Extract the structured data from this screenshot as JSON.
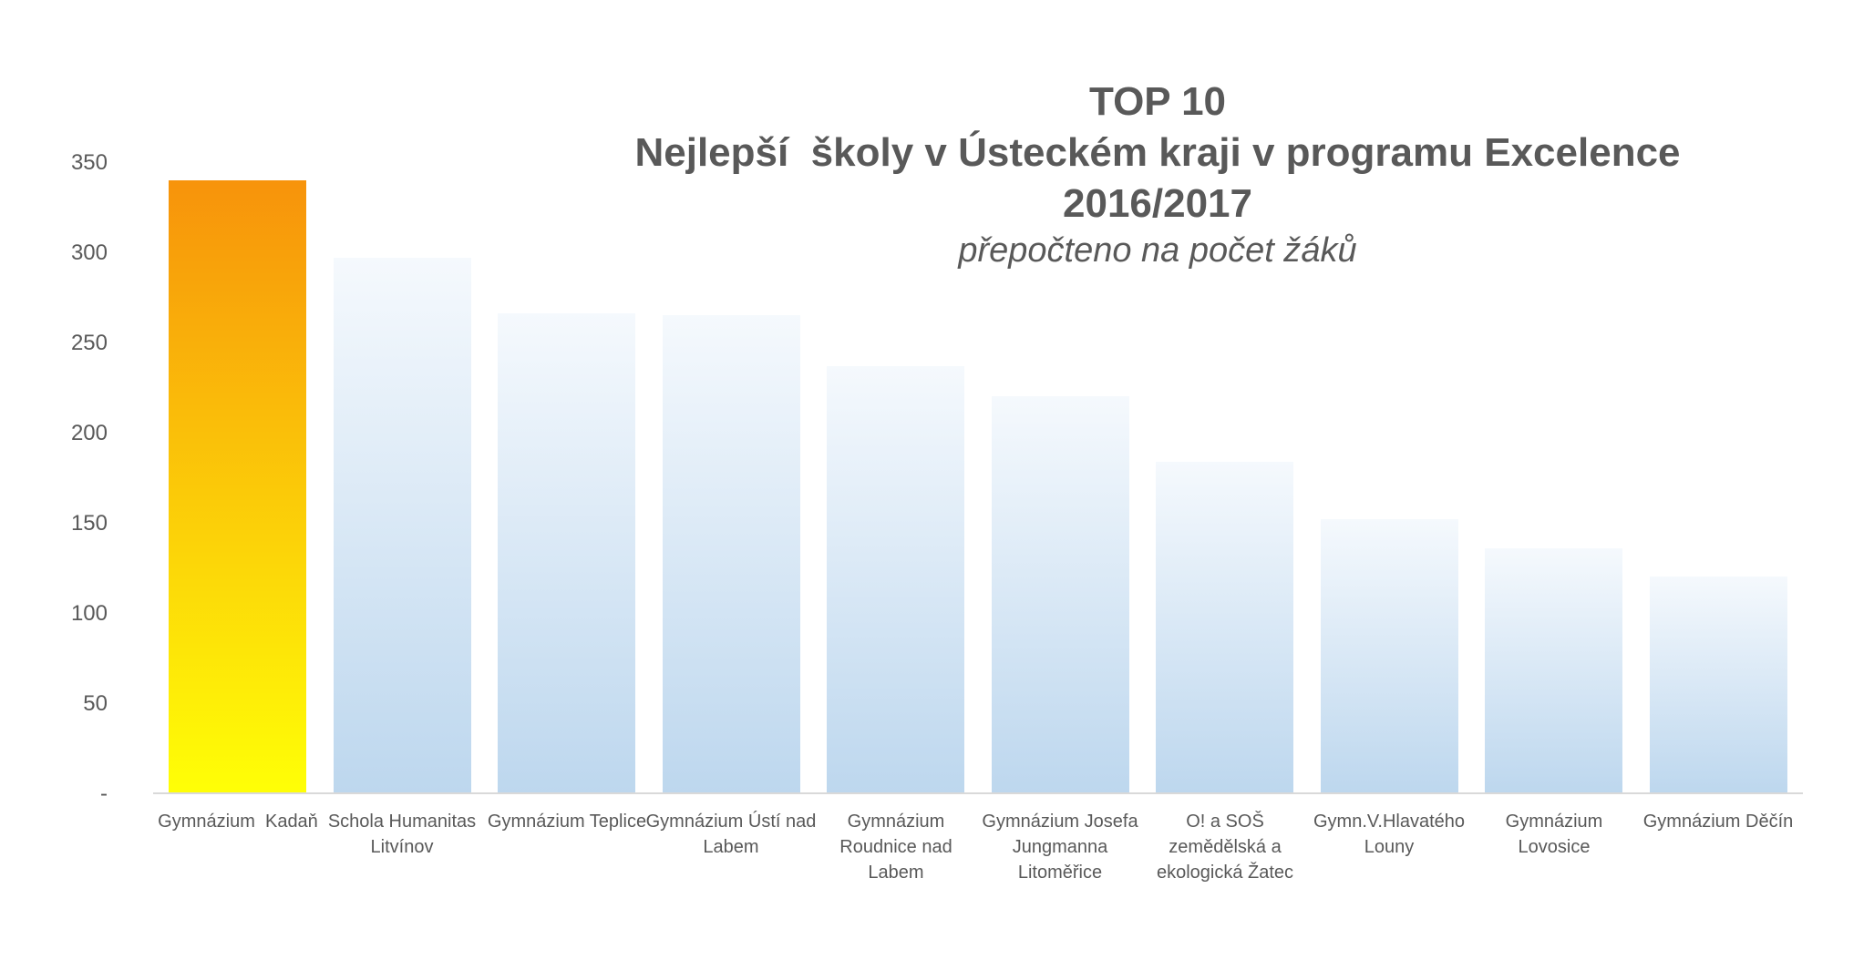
{
  "chart_data": {
    "type": "bar",
    "title": "TOP 10",
    "subtitle": "Nejlepší  školy v Ústeckém kraji v programu Excelence",
    "period": "2016/2017",
    "note": "přepočteno na počet žáků",
    "categories": [
      "Gymnázium  Kadaň",
      "Schola Humanitas Litvínov",
      "Gymnázium Teplice",
      "Gymnázium Ústí nad Labem",
      "Gymnázium Roudnice nad Labem",
      "Gymnázium Josefa Jungmanna Litoměřice",
      "O! a SOŠ zemědělská a ekologická Žatec",
      "Gymn.V.Hlavatého Louny",
      "Gymnázium Lovosice",
      "Gymnázium Děčín"
    ],
    "category_labels_wrapped": [
      "Gymnázium  Kadaň",
      "Schola Humanitas\nLitvínov",
      "Gymnázium Teplice",
      "Gymnázium Ústí nad\nLabem",
      "Gymnázium\nRoudnice nad\nLabem",
      "Gymnázium Josefa\nJungmanna\nLitoměřice",
      "O! a SOŠ\nzemědělská a\nekologická Žatec",
      "Gymn.V.Hlavatého\nLouny",
      "Gymnázium\nLovosice",
      "Gymnázium Děčín"
    ],
    "values": [
      340,
      297,
      266,
      265,
      237,
      220,
      184,
      152,
      136,
      120
    ],
    "highlight_index": 0,
    "ylim": [
      0,
      350
    ],
    "yticks": [
      {
        "label": "350",
        "value": 350
      },
      {
        "label": "300",
        "value": 300
      },
      {
        "label": "250",
        "value": 250
      },
      {
        "label": "200",
        "value": 200
      },
      {
        "label": "150",
        "value": 150
      },
      {
        "label": "100",
        "value": 100
      },
      {
        "label": "50",
        "value": 50
      },
      {
        "label": "-",
        "value": 0
      }
    ],
    "grid": false,
    "legend": "none",
    "xlabel": "",
    "ylabel": ""
  },
  "colors": {
    "text": "#595959",
    "axis_line": "#d9d9d9",
    "highlight_bar_top": "#f7930b",
    "highlight_bar_bottom": "#ffff06",
    "bar_top": "#f5f9fd",
    "bar_bottom": "#bdd7ee"
  }
}
